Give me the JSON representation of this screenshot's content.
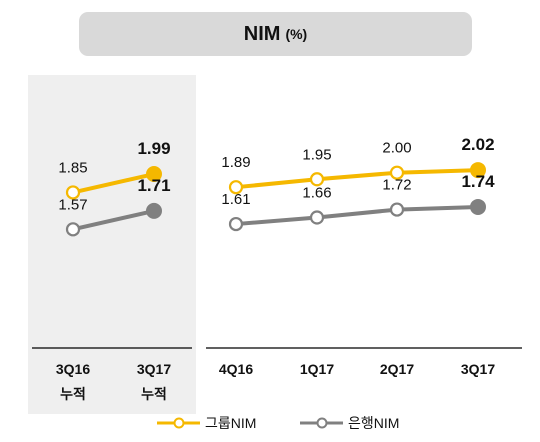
{
  "chart_data": [
    {
      "type": "line",
      "title": "NIM",
      "unit": "(%)",
      "categories": [
        "3Q16\n누적",
        "3Q17\n누적"
      ],
      "series": [
        {
          "name": "그룹NIM",
          "values": [
            1.85,
            1.99
          ],
          "color": "#f5b800"
        },
        {
          "name": "은행NIM",
          "values": [
            1.57,
            1.71
          ],
          "color": "#808080"
        }
      ],
      "highlight_last": true
    },
    {
      "type": "line",
      "categories": [
        "4Q16",
        "1Q17",
        "2Q17",
        "3Q17"
      ],
      "series": [
        {
          "name": "그룹NIM",
          "values": [
            1.89,
            1.95,
            2.0,
            2.02
          ],
          "color": "#f5b800"
        },
        {
          "name": "은행NIM",
          "values": [
            1.61,
            1.66,
            1.72,
            1.74
          ],
          "color": "#808080"
        }
      ],
      "highlight_last": true
    }
  ],
  "legend": [
    {
      "label": "그룹NIM",
      "color": "#f5b800"
    },
    {
      "label": "은행NIM",
      "color": "#808080"
    }
  ],
  "colors": {
    "panel_bg": "#efefef",
    "title_bg": "#d9d9d9"
  }
}
